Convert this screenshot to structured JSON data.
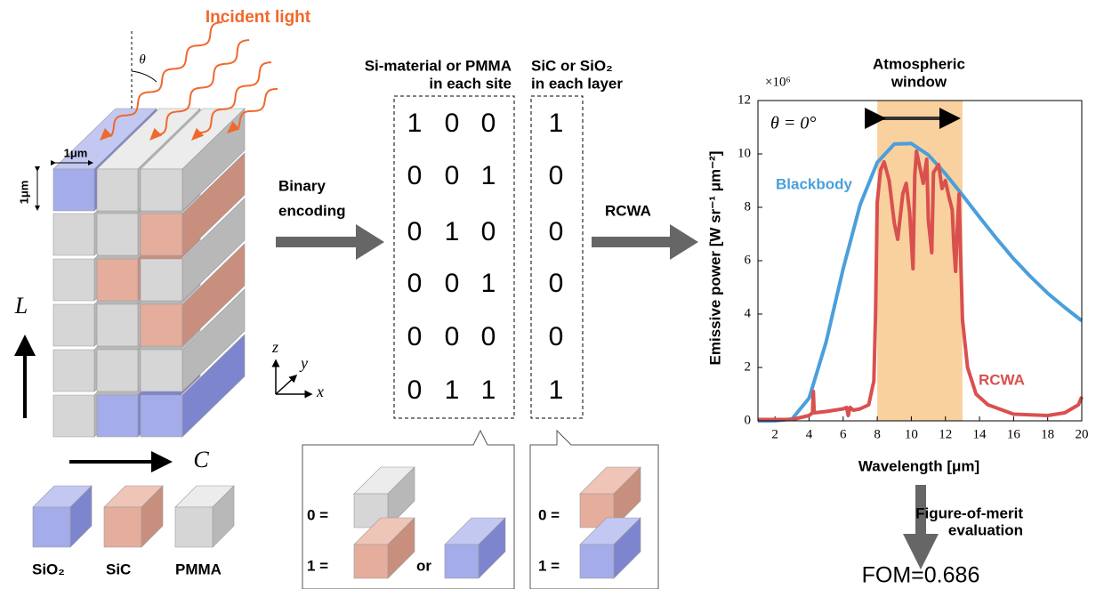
{
  "structure": {
    "incident_light": "Incident light",
    "theta": "θ",
    "unit_width": "1μm",
    "unit_height": "1μm",
    "axis_L": "L",
    "axis_C": "C",
    "coords": {
      "z": "z",
      "y": "y",
      "x": "x"
    },
    "materials": [
      "SiO₂",
      "SiC",
      "PMMA"
    ]
  },
  "encoding": {
    "label": [
      "Binary",
      "encoding"
    ],
    "site_header": [
      "Si-material or PMMA",
      "in each site"
    ],
    "layer_header": [
      "SiC or SiO₂",
      "in each layer"
    ],
    "sites": [
      [
        1,
        0,
        0
      ],
      [
        0,
        0,
        1
      ],
      [
        0,
        1,
        0
      ],
      [
        0,
        0,
        1
      ],
      [
        0,
        0,
        0
      ],
      [
        0,
        1,
        1
      ]
    ],
    "layers": [
      1,
      0,
      0,
      0,
      0,
      1
    ],
    "site_key": {
      "zero": "0 =",
      "one": "1 =",
      "or": "or"
    },
    "layer_key": {
      "zero": "0 =",
      "one": "1 ="
    }
  },
  "solver": "RCWA",
  "plot": {
    "type": "line",
    "scale_label": "×10⁶",
    "window_label": [
      "Atmospheric",
      "window"
    ],
    "angle_label": "θ = 0°",
    "window": [
      8,
      13
    ],
    "xlabel": "Wavelength [μm]",
    "ylabel": "Emissive power [W sr⁻¹ μm⁻²]",
    "xlim": [
      1,
      20
    ],
    "ylim": [
      0,
      12
    ],
    "xticks": [
      2,
      4,
      6,
      8,
      10,
      12,
      14,
      16,
      18,
      20
    ],
    "yticks": [
      0,
      2,
      4,
      6,
      8,
      10,
      12
    ],
    "series": [
      {
        "name": "Blackbody",
        "color": "#4a9fdc",
        "x": [
          1,
          2,
          3,
          4,
          5,
          6,
          7,
          8,
          9,
          10,
          11,
          12,
          13,
          14,
          15,
          16,
          17,
          18,
          19,
          20
        ],
        "values": [
          0,
          0,
          0.07,
          0.85,
          2.95,
          5.7,
          8.1,
          9.68,
          10.37,
          10.39,
          9.96,
          9.26,
          8.46,
          7.63,
          6.83,
          6.07,
          5.4,
          4.78,
          4.25,
          3.75
        ]
      },
      {
        "name": "RCWA",
        "color": "#d9504f",
        "x": [
          1,
          3,
          4,
          4.2,
          4.25,
          4.3,
          5,
          6,
          6.2,
          6.3,
          6.4,
          6.6,
          7,
          7.5,
          7.8,
          7.9,
          8,
          8.2,
          8.4,
          8.7,
          9,
          9.2,
          9.5,
          9.7,
          9.9,
          10.1,
          10.2,
          10.3,
          10.5,
          10.7,
          10.9,
          11,
          11.2,
          11.3,
          11.6,
          11.8,
          12,
          12.2,
          12.4,
          12.5,
          12.6,
          12.7,
          12.8,
          12.9,
          13,
          13.3,
          13.8,
          14.5,
          16,
          18,
          19,
          19.8,
          20
        ],
        "values": [
          0.05,
          0.05,
          0.2,
          0.3,
          1.1,
          0.3,
          0.35,
          0.45,
          0.5,
          0.2,
          0.5,
          0.4,
          0.45,
          0.6,
          1.5,
          4,
          8.2,
          9.4,
          9.7,
          9,
          7.4,
          6.8,
          8.5,
          8.9,
          7.8,
          5.7,
          9.2,
          10.1,
          9.5,
          8.9,
          9.8,
          7.5,
          6.3,
          9.3,
          9.6,
          8.7,
          9,
          8.4,
          7.9,
          6.5,
          5.6,
          7.2,
          8.5,
          6,
          3.8,
          2,
          1,
          0.6,
          0.25,
          0.2,
          0.3,
          0.6,
          0.9
        ]
      }
    ]
  },
  "evaluation": {
    "label": [
      "Figure-of-merit",
      "evaluation"
    ],
    "result": "FOM=0.686"
  }
}
